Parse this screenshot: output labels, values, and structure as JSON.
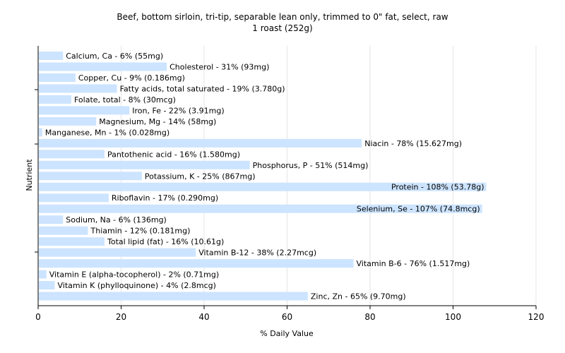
{
  "chart_data": {
    "type": "bar",
    "orientation": "horizontal",
    "title": "Beef, bottom sirloin, tri-tip, separable lean only, trimmed to 0\" fat, select, raw",
    "subtitle": "1 roast (252g)",
    "xlabel": "% Daily Value",
    "ylabel": "Nutrient",
    "xlim": [
      0,
      120
    ],
    "xticks": [
      "0",
      "20",
      "40",
      "60",
      "80",
      "100",
      "120"
    ],
    "grid": true,
    "bar_color": "#cce4ff",
    "categories": [
      "Calcium, Ca",
      "Cholesterol",
      "Copper, Cu",
      "Fatty acids, total saturated",
      "Folate, total",
      "Iron, Fe",
      "Magnesium, Mg",
      "Manganese, Mn",
      "Niacin",
      "Pantothenic acid",
      "Phosphorus, P",
      "Potassium, K",
      "Protein",
      "Riboflavin",
      "Selenium, Se",
      "Sodium, Na",
      "Thiamin",
      "Total lipid (fat)",
      "Vitamin B-12",
      "Vitamin B-6",
      "Vitamin E (alpha-tocopherol)",
      "Vitamin K (phylloquinone)",
      "Zinc, Zn"
    ],
    "values": [
      6,
      31,
      9,
      19,
      8,
      22,
      14,
      1,
      78,
      16,
      51,
      25,
      108,
      17,
      107,
      6,
      12,
      16,
      38,
      76,
      2,
      4,
      65
    ],
    "labels": [
      "Calcium, Ca - 6% (55mg)",
      "Cholesterol - 31% (93mg)",
      "Copper, Cu - 9% (0.186mg)",
      "Fatty acids, total saturated - 19% (3.780g)",
      "Folate, total - 8% (30mcg)",
      "Iron, Fe - 22% (3.91mg)",
      "Magnesium, Mg - 14% (58mg)",
      "Manganese, Mn - 1% (0.028mg)",
      "Niacin - 78% (15.627mg)",
      "Pantothenic acid - 16% (1.580mg)",
      "Phosphorus, P - 51% (514mg)",
      "Potassium, K - 25% (867mg)",
      "Protein - 108% (53.78g)",
      "Riboflavin - 17% (0.290mg)",
      "Selenium, Se - 107% (74.8mcg)",
      "Sodium, Na - 6% (136mg)",
      "Thiamin - 12% (0.181mg)",
      "Total lipid (fat) - 16% (10.61g)",
      "Vitamin B-12 - 38% (2.27mcg)",
      "Vitamin B-6 - 76% (1.517mg)",
      "Vitamin E (alpha-tocopherol) - 2% (0.71mg)",
      "Vitamin K (phylloquinone) - 4% (2.8mcg)",
      "Zinc, Zn - 65% (9.70mg)"
    ]
  }
}
